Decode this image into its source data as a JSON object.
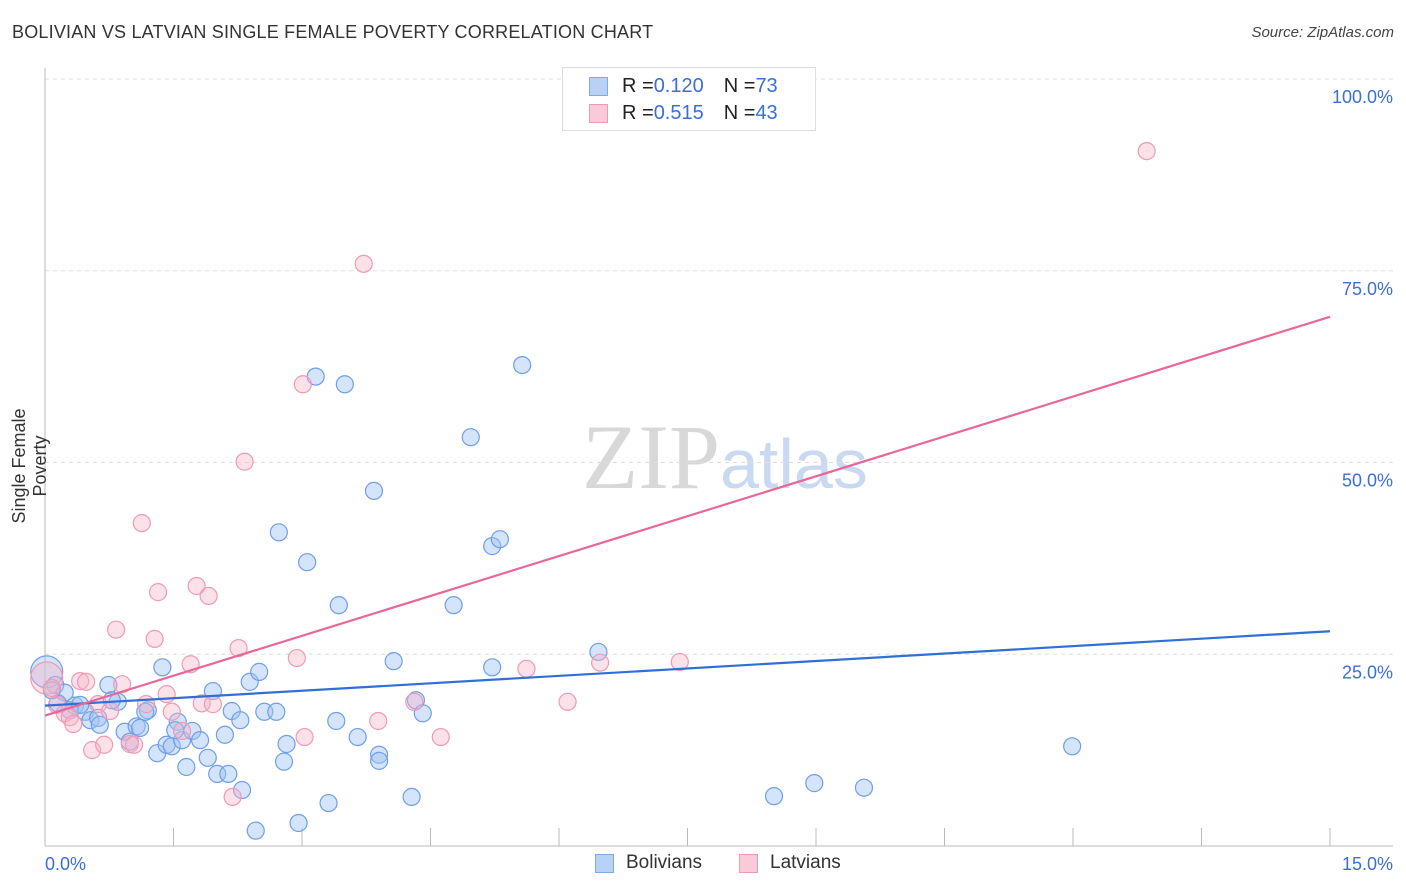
{
  "title": "BOLIVIAN VS LATVIAN SINGLE FEMALE POVERTY CORRELATION CHART",
  "source": "Source: ZipAtlas.com",
  "watermark": "ZIPatlas",
  "legend": {
    "rows": [
      {
        "r_label": "R = ",
        "r_value": "0.120",
        "n_label": "N = ",
        "n_value": "73"
      },
      {
        "r_label": "R = ",
        "r_value": "0.515",
        "n_label": "N = ",
        "n_value": "43"
      }
    ]
  },
  "colors": {
    "bolivians": "#6f9fe8",
    "bolivians_line": "#2f6fd6",
    "latvians": "#f09ab5",
    "latvians_line": "#e8679a",
    "tick_label": "#3a6fd8"
  },
  "chart_data": {
    "type": "scatter",
    "title": "BOLIVIAN VS LATVIAN SINGLE FEMALE POVERTY CORRELATION CHART",
    "xlabel": "",
    "ylabel": "Single Female Poverty",
    "xlim": [
      0,
      15
    ],
    "ylim": [
      0,
      100
    ],
    "x_tick_labels": [
      "0.0%",
      "15.0%"
    ],
    "y_tick_labels": [
      {
        "v": 100,
        "label": "100.0%"
      },
      {
        "v": 75,
        "label": "75.0%"
      },
      {
        "v": 50,
        "label": "50.0%"
      },
      {
        "v": 25,
        "label": "25.0%"
      }
    ],
    "grid": true,
    "legend_position": "top-center",
    "series": [
      {
        "name": "Bolivians",
        "trend": [
          [
            0,
            18.3
          ],
          [
            15,
            28.0
          ]
        ],
        "points": [
          [
            0.02,
            22.7
          ],
          [
            0.12,
            21.0
          ],
          [
            0.23,
            20.0
          ],
          [
            0.15,
            18.6
          ],
          [
            0.35,
            18.3
          ],
          [
            0.47,
            17.5
          ],
          [
            0.53,
            16.4
          ],
          [
            0.62,
            16.7
          ],
          [
            0.74,
            21.0
          ],
          [
            0.85,
            18.8
          ],
          [
            0.93,
            14.9
          ],
          [
            0.99,
            13.6
          ],
          [
            1.07,
            15.6
          ],
          [
            1.11,
            15.4
          ],
          [
            1.2,
            17.7
          ],
          [
            1.31,
            12.1
          ],
          [
            1.37,
            23.3
          ],
          [
            1.42,
            13.2
          ],
          [
            1.48,
            13.0
          ],
          [
            1.55,
            16.2
          ],
          [
            1.6,
            13.8
          ],
          [
            1.65,
            10.3
          ],
          [
            1.72,
            15.0
          ],
          [
            1.81,
            13.8
          ],
          [
            1.9,
            11.5
          ],
          [
            1.96,
            20.2
          ],
          [
            2.01,
            9.4
          ],
          [
            2.1,
            14.5
          ],
          [
            2.14,
            9.4
          ],
          [
            2.18,
            17.6
          ],
          [
            2.28,
            16.4
          ],
          [
            2.3,
            7.3
          ],
          [
            2.39,
            21.4
          ],
          [
            2.46,
            2.0
          ],
          [
            2.5,
            22.7
          ],
          [
            2.56,
            17.5
          ],
          [
            2.7,
            17.5
          ],
          [
            2.73,
            40.9
          ],
          [
            2.79,
            11.0
          ],
          [
            2.82,
            13.3
          ],
          [
            2.96,
            3.0
          ],
          [
            3.06,
            37.0
          ],
          [
            3.16,
            61.2
          ],
          [
            3.31,
            5.6
          ],
          [
            3.4,
            16.3
          ],
          [
            3.43,
            31.4
          ],
          [
            3.5,
            60.2
          ],
          [
            3.65,
            14.2
          ],
          [
            3.84,
            46.3
          ],
          [
            3.9,
            11.9
          ],
          [
            3.9,
            11.1
          ],
          [
            4.07,
            24.1
          ],
          [
            4.28,
            6.4
          ],
          [
            4.33,
            19.0
          ],
          [
            4.41,
            17.3
          ],
          [
            4.77,
            31.4
          ],
          [
            4.97,
            53.3
          ],
          [
            5.22,
            39.1
          ],
          [
            5.22,
            23.3
          ],
          [
            5.31,
            40.0
          ],
          [
            5.57,
            62.7
          ],
          [
            6.46,
            25.3
          ],
          [
            8.51,
            6.5
          ],
          [
            8.98,
            8.2
          ],
          [
            9.56,
            7.6
          ],
          [
            11.99,
            13.0
          ],
          [
            0.08,
            20.3
          ],
          [
            0.29,
            17.7
          ],
          [
            0.41,
            18.4
          ],
          [
            0.64,
            15.8
          ],
          [
            0.78,
            19.0
          ],
          [
            1.17,
            17.5
          ],
          [
            1.52,
            15.1
          ]
        ]
      },
      {
        "name": "Latvians",
        "trend": [
          [
            0,
            17.0
          ],
          [
            15,
            69.0
          ]
        ],
        "points": [
          [
            0.02,
            21.9
          ],
          [
            0.08,
            20.6
          ],
          [
            0.14,
            18.4
          ],
          [
            0.23,
            17.3
          ],
          [
            0.29,
            16.8
          ],
          [
            0.33,
            15.9
          ],
          [
            0.41,
            21.5
          ],
          [
            0.48,
            21.4
          ],
          [
            0.55,
            12.5
          ],
          [
            0.62,
            18.5
          ],
          [
            0.69,
            13.2
          ],
          [
            0.76,
            17.6
          ],
          [
            0.83,
            28.2
          ],
          [
            0.9,
            21.1
          ],
          [
            0.99,
            13.3
          ],
          [
            1.04,
            13.2
          ],
          [
            1.13,
            42.1
          ],
          [
            1.18,
            18.5
          ],
          [
            1.28,
            27.0
          ],
          [
            1.32,
            33.1
          ],
          [
            1.42,
            19.8
          ],
          [
            1.48,
            17.5
          ],
          [
            1.6,
            15.0
          ],
          [
            1.7,
            23.7
          ],
          [
            1.77,
            33.9
          ],
          [
            1.83,
            18.6
          ],
          [
            1.91,
            32.6
          ],
          [
            1.96,
            18.5
          ],
          [
            2.19,
            6.4
          ],
          [
            2.26,
            25.8
          ],
          [
            2.33,
            50.1
          ],
          [
            2.94,
            24.5
          ],
          [
            3.01,
            60.2
          ],
          [
            3.03,
            14.2
          ],
          [
            3.72,
            75.9
          ],
          [
            3.89,
            16.3
          ],
          [
            4.31,
            18.8
          ],
          [
            4.62,
            14.2
          ],
          [
            5.62,
            23.1
          ],
          [
            6.1,
            18.8
          ],
          [
            6.48,
            23.9
          ],
          [
            7.41,
            24.0
          ],
          [
            12.86,
            90.6
          ]
        ]
      }
    ]
  }
}
